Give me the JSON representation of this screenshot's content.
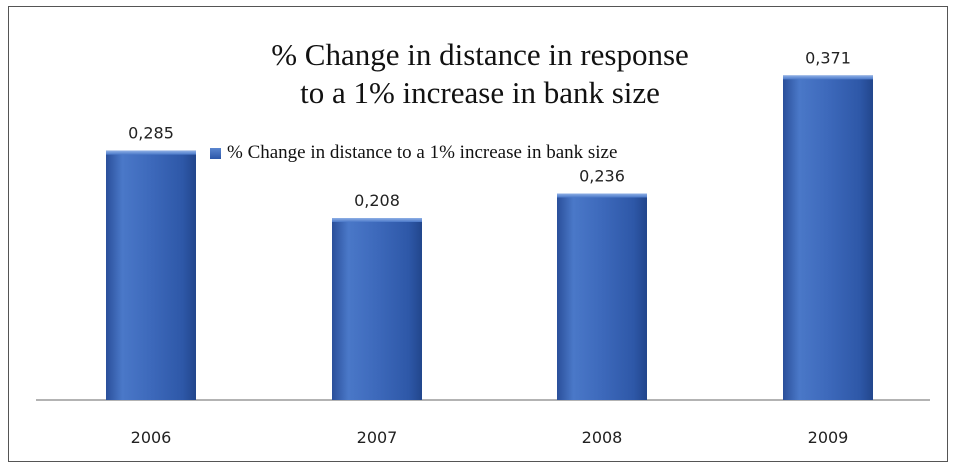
{
  "chart_data": {
    "type": "bar",
    "title": "% Change in distance in response to a 1% increase in bank size",
    "title_lines": [
      "% Change in distance in response",
      "to a 1% increase in bank size"
    ],
    "categories": [
      "2006",
      "2007",
      "2008",
      "2009"
    ],
    "series": [
      {
        "name": "% Change in distance to a 1% increase in bank size",
        "values": [
          0.285,
          0.208,
          0.236,
          0.371
        ],
        "value_labels": [
          "0,285",
          "0,208",
          "0,236",
          "0,371"
        ],
        "color": "#3a66b8"
      }
    ],
    "ylim": [
      0,
      0.4
    ],
    "legend_position": "top-center",
    "grid": false
  }
}
